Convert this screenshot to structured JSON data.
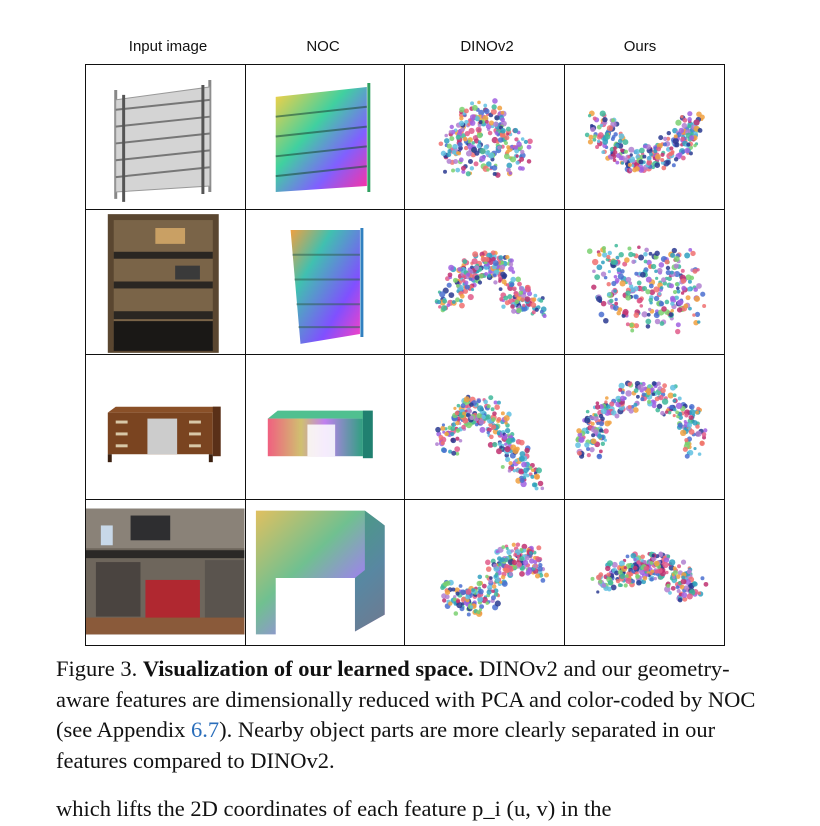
{
  "figure": {
    "columns": [
      "Input image",
      "NOC",
      "DINOv2",
      "Ours"
    ],
    "rows": [
      {
        "input": "shelf-render",
        "noc": "shelf-noc"
      },
      {
        "input": "shelf-photo",
        "noc": "shelf-noc-tilted"
      },
      {
        "input": "desk-render",
        "noc": "desk-noc"
      },
      {
        "input": "desk-photo",
        "noc": "desk-noc-closeup"
      }
    ]
  },
  "caption": {
    "label": "Figure 3.",
    "title": "Visualization of our learned space.",
    "text_before_ref": "DINOv2 and our geometry-aware features are dimensionally reduced with PCA and color-coded by NOC (see Appendix",
    "ref": "6.7",
    "text_after_ref": "). Nearby object parts are more clearly separated in our features compared to DINOv2."
  },
  "next_line": "which lifts the 2D coordinates of each feature p_i (u, v) in the"
}
